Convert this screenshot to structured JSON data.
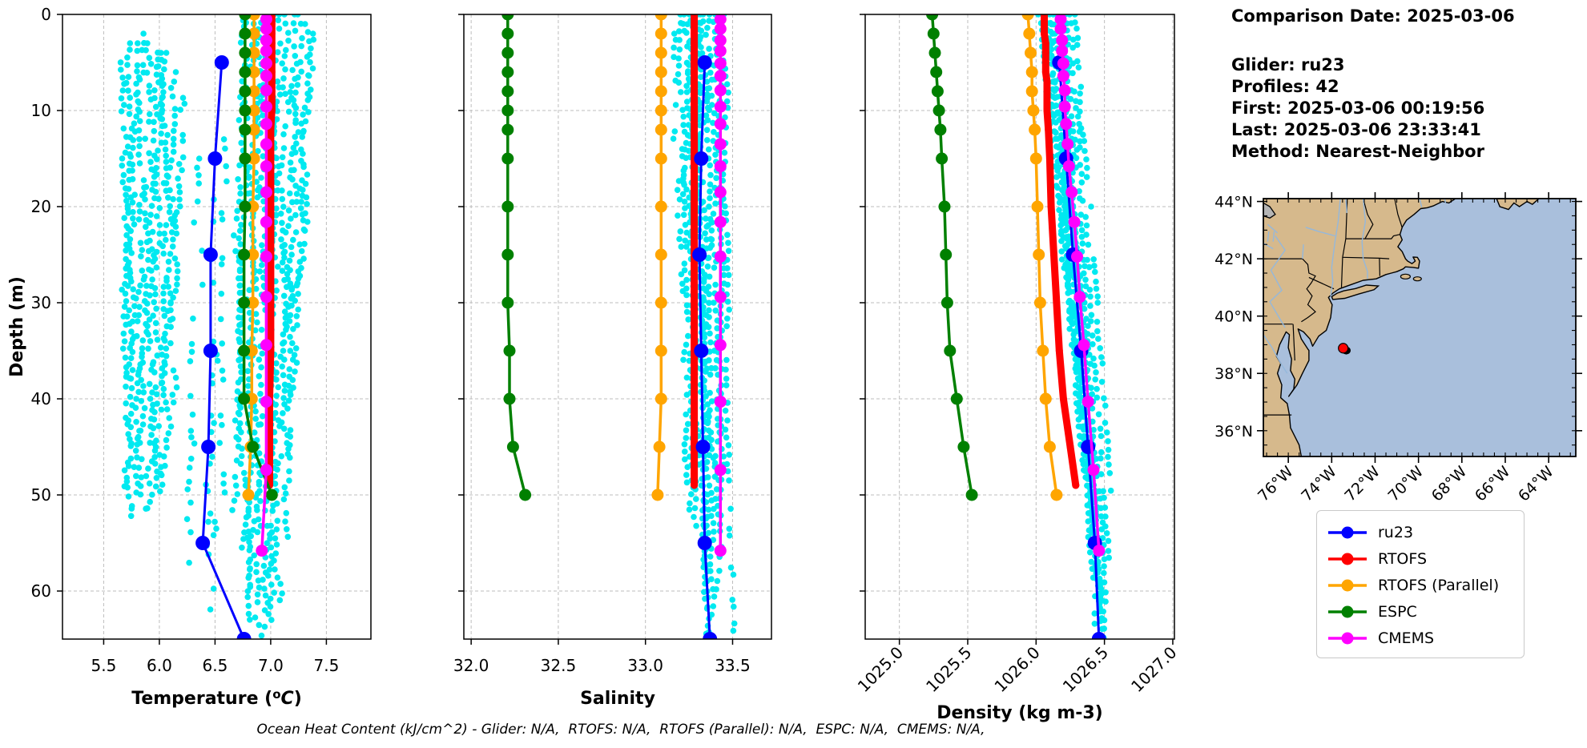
{
  "info": {
    "title": "Comparison Date: 2025-03-06",
    "lines": [
      "Glider: ru23",
      "Profiles: 42",
      "First: 2025-03-06 00:19:56",
      "Last: 2025-03-06 23:33:41",
      "Method: Nearest-Neighbor"
    ]
  },
  "footnote": {
    "text": "Ocean Heat Content (kJ/cm^2) - Glider: N/A,  RTOFS: N/A,  RTOFS (Parallel): N/A,  ESPC: N/A,  CMEMS: N/A,"
  },
  "legend": {
    "items": [
      {
        "label": "ru23",
        "color": "#0000ff"
      },
      {
        "label": "RTOFS",
        "color": "#ff0000"
      },
      {
        "label": "RTOFS (Parallel)",
        "color": "#ffa500"
      },
      {
        "label": "ESPC",
        "color": "#008000"
      },
      {
        "label": "CMEMS",
        "color": "#ff00ff"
      }
    ]
  },
  "colors": {
    "glider_scatter": "#00e9f0",
    "grid": "#bdbdbd",
    "spine": "#000000"
  },
  "chart_data": [
    {
      "type": "scatter",
      "id": "temperature",
      "xlabel": "Temperature (°C)",
      "ylabel": "Depth (m)",
      "xlim": [
        5.13,
        7.9
      ],
      "ylim": [
        0,
        65
      ],
      "xticks": [
        5.5,
        6.0,
        6.5,
        7.0,
        7.5
      ],
      "xtick_labels": [
        "5.5",
        "6.0",
        "6.5",
        "7.0",
        "7.5"
      ],
      "yticks": [
        0,
        10,
        20,
        30,
        40,
        50,
        60
      ],
      "ytick_labels": [
        "0",
        "10",
        "20",
        "30",
        "40",
        "50",
        "60"
      ],
      "rotate_xticks": false,
      "grid": true,
      "series": [
        {
          "name": "RTOFS",
          "color": "#ff0000",
          "lw": 9,
          "mr": 4.5,
          "depths": [
            0,
            1,
            2,
            3,
            4,
            5,
            6,
            7,
            8,
            9,
            10,
            12,
            15,
            20,
            25,
            30,
            35,
            40,
            45,
            49
          ],
          "values": [
            7.01,
            7.01,
            7.01,
            7.01,
            7.01,
            7.01,
            7.01,
            7.01,
            7.01,
            7.01,
            7.01,
            7.0,
            7.0,
            7.0,
            7.0,
            7.0,
            7.0,
            6.99,
            6.99,
            6.99
          ]
        },
        {
          "name": "RTOFS (Parallel)",
          "color": "#ffa500",
          "lw": 3.5,
          "mr": 7.5,
          "depths": [
            0,
            2,
            4,
            6,
            8,
            10,
            12,
            15,
            20,
            25,
            30,
            35,
            40,
            45,
            50
          ],
          "values": [
            6.85,
            6.85,
            6.85,
            6.85,
            6.85,
            6.85,
            6.85,
            6.85,
            6.84,
            6.84,
            6.84,
            6.83,
            6.83,
            6.82,
            6.8
          ]
        },
        {
          "name": "ESPC",
          "color": "#008000",
          "lw": 3.5,
          "mr": 7.5,
          "depths": [
            0,
            2,
            4,
            6,
            8,
            10,
            12,
            15,
            20,
            25,
            30,
            35,
            40,
            45,
            50
          ],
          "values": [
            6.77,
            6.77,
            6.77,
            6.77,
            6.77,
            6.77,
            6.77,
            6.77,
            6.77,
            6.76,
            6.76,
            6.76,
            6.76,
            6.84,
            7.01
          ]
        },
        {
          "name": "ru23",
          "color": "#0000ff",
          "lw": 3,
          "mr": 9,
          "depths": [
            5,
            15,
            25,
            35,
            45,
            55,
            65
          ],
          "values": [
            6.56,
            6.5,
            6.46,
            6.46,
            6.44,
            6.39,
            6.76
          ]
        },
        {
          "name": "CMEMS",
          "color": "#ff00ff",
          "lw": 3.5,
          "mr": 7.5,
          "depths": [
            0.5,
            1.5,
            2.7,
            3.8,
            5.1,
            6.4,
            7.9,
            9.6,
            11.4,
            13.5,
            15.8,
            18.5,
            21.6,
            25.2,
            29.4,
            34.4,
            40.3,
            47.4,
            55.8
          ],
          "values": [
            6.96,
            6.96,
            6.96,
            6.96,
            6.96,
            6.96,
            6.96,
            6.96,
            6.96,
            6.96,
            6.96,
            6.96,
            6.96,
            6.96,
            6.96,
            6.96,
            6.96,
            6.96,
            6.92
          ]
        }
      ],
      "glider_scatter": {
        "seed": 7,
        "step": 0.8,
        "jitter": 0.035,
        "strands": [
          [
            5.66,
            5.7,
            4,
            38
          ],
          [
            5.72,
            5.7,
            3,
            50
          ],
          [
            5.78,
            5.74,
            3,
            52
          ],
          [
            5.84,
            5.79,
            2,
            53
          ],
          [
            5.9,
            5.84,
            3,
            50
          ],
          [
            5.96,
            5.89,
            3,
            53
          ],
          [
            6.02,
            5.93,
            4,
            52
          ],
          [
            6.08,
            5.99,
            4,
            48
          ],
          [
            6.14,
            6.04,
            6,
            50
          ],
          [
            6.2,
            6.1,
            8,
            42
          ],
          [
            6.36,
            6.3,
            15,
            58,
            0.55
          ],
          [
            6.5,
            6.44,
            18,
            62,
            0.6
          ],
          [
            6.6,
            6.52,
            12,
            55,
            0.6
          ],
          [
            6.72,
            6.7,
            0,
            52
          ],
          [
            6.78,
            6.74,
            0,
            56
          ],
          [
            6.84,
            6.79,
            0,
            60
          ],
          [
            6.9,
            6.84,
            0,
            63
          ],
          [
            6.96,
            6.89,
            0,
            65
          ],
          [
            7.02,
            6.94,
            0,
            65
          ],
          [
            7.08,
            7.0,
            0,
            64
          ],
          [
            7.14,
            7.06,
            0,
            61
          ],
          [
            7.2,
            7.11,
            0,
            55
          ],
          [
            7.26,
            7.16,
            0,
            47
          ],
          [
            7.32,
            7.22,
            1,
            40
          ],
          [
            7.38,
            7.28,
            2,
            28
          ]
        ]
      }
    },
    {
      "type": "scatter",
      "id": "salinity",
      "xlabel": "Salinity",
      "ylabel": "Depth (m)",
      "xlim": [
        31.958,
        33.723
      ],
      "ylim": [
        0,
        65
      ],
      "xticks": [
        32.0,
        32.5,
        33.0,
        33.5
      ],
      "xtick_labels": [
        "32.0",
        "32.5",
        "33.0",
        "33.5"
      ],
      "yticks": [
        0,
        10,
        20,
        30,
        40,
        50,
        60
      ],
      "ytick_labels": [],
      "rotate_xticks": false,
      "grid": true,
      "series": [
        {
          "name": "RTOFS",
          "color": "#ff0000",
          "lw": 9,
          "mr": 4.5,
          "depths": [
            0,
            1,
            2,
            3,
            4,
            5,
            6,
            7,
            8,
            9,
            10,
            12,
            15,
            20,
            25,
            30,
            35,
            40,
            45,
            49
          ],
          "values": [
            33.28,
            33.28,
            33.28,
            33.28,
            33.28,
            33.28,
            33.28,
            33.28,
            33.28,
            33.28,
            33.28,
            33.28,
            33.28,
            33.28,
            33.28,
            33.28,
            33.28,
            33.28,
            33.28,
            33.28
          ]
        },
        {
          "name": "RTOFS (Parallel)",
          "color": "#ffa500",
          "lw": 3.5,
          "mr": 7.5,
          "depths": [
            0,
            2,
            4,
            6,
            8,
            10,
            12,
            15,
            20,
            25,
            30,
            35,
            40,
            45,
            50
          ],
          "values": [
            33.09,
            33.09,
            33.09,
            33.09,
            33.09,
            33.09,
            33.09,
            33.09,
            33.09,
            33.09,
            33.09,
            33.09,
            33.09,
            33.08,
            33.07
          ]
        },
        {
          "name": "ESPC",
          "color": "#008000",
          "lw": 3.5,
          "mr": 7.5,
          "depths": [
            0,
            2,
            4,
            6,
            8,
            10,
            12,
            15,
            20,
            25,
            30,
            35,
            40,
            45,
            50
          ],
          "values": [
            32.21,
            32.21,
            32.21,
            32.21,
            32.21,
            32.21,
            32.21,
            32.21,
            32.21,
            32.21,
            32.21,
            32.22,
            32.22,
            32.24,
            32.31
          ]
        },
        {
          "name": "ru23",
          "color": "#0000ff",
          "lw": 3,
          "mr": 9,
          "depths": [
            5,
            15,
            25,
            35,
            45,
            55,
            65
          ],
          "values": [
            33.34,
            33.32,
            33.31,
            33.32,
            33.33,
            33.34,
            33.37
          ]
        },
        {
          "name": "CMEMS",
          "color": "#ff00ff",
          "lw": 3.5,
          "mr": 7.5,
          "depths": [
            0.5,
            1.5,
            2.7,
            3.8,
            5.1,
            6.4,
            7.9,
            9.6,
            11.4,
            13.5,
            15.8,
            18.5,
            21.6,
            25.2,
            29.4,
            34.4,
            40.3,
            47.4,
            55.8
          ],
          "values": [
            33.43,
            33.43,
            33.43,
            33.43,
            33.43,
            33.43,
            33.43,
            33.43,
            33.43,
            33.43,
            33.43,
            33.43,
            33.43,
            33.43,
            33.43,
            33.43,
            33.43,
            33.43,
            33.43
          ]
        }
      ],
      "glider_scatter": {
        "seed": 11,
        "step": 0.85,
        "jitter": 0.015,
        "strands": [
          [
            33.2,
            33.24,
            0,
            49
          ],
          [
            33.23,
            33.27,
            0,
            52
          ],
          [
            33.27,
            33.3,
            0,
            54
          ],
          [
            33.3,
            33.33,
            0,
            58
          ],
          [
            33.33,
            33.36,
            0,
            65
          ],
          [
            33.36,
            33.39,
            0,
            64
          ],
          [
            33.39,
            33.42,
            0,
            60
          ],
          [
            33.42,
            33.44,
            0,
            53
          ],
          [
            33.45,
            33.47,
            0,
            50
          ],
          [
            33.25,
            33.29,
            0,
            47
          ],
          [
            33.31,
            33.35,
            0,
            65
          ],
          [
            33.47,
            33.52,
            48,
            65,
            0.4
          ],
          [
            33.17,
            33.2,
            2,
            30,
            0.5
          ]
        ]
      }
    },
    {
      "type": "scatter",
      "id": "density",
      "xlabel": "Density (kg m-3)",
      "ylabel": "Depth (m)",
      "xlim": [
        1024.75,
        1027.012
      ],
      "ylim": [
        0,
        65
      ],
      "xticks": [
        1025.0,
        1025.5,
        1026.0,
        1026.5,
        1027.0
      ],
      "xtick_labels": [
        "1025.0",
        "1025.5",
        "1026.0",
        "1026.5",
        "1027.0"
      ],
      "yticks": [
        0,
        10,
        20,
        30,
        40,
        50,
        60
      ],
      "ytick_labels": [],
      "rotate_xticks": true,
      "grid": true,
      "series": [
        {
          "name": "RTOFS",
          "color": "#ff0000",
          "lw": 9,
          "mr": 4.5,
          "depths": [
            0,
            1,
            2,
            3,
            4,
            5,
            6,
            7,
            8,
            9,
            10,
            12,
            15,
            20,
            25,
            30,
            35,
            40,
            45,
            49
          ],
          "values": [
            1026.06,
            1026.06,
            1026.06,
            1026.07,
            1026.07,
            1026.07,
            1026.07,
            1026.08,
            1026.08,
            1026.08,
            1026.08,
            1026.09,
            1026.1,
            1026.11,
            1026.13,
            1026.15,
            1026.17,
            1026.2,
            1026.25,
            1026.29
          ]
        },
        {
          "name": "RTOFS (Parallel)",
          "color": "#ffa500",
          "lw": 3.5,
          "mr": 7.5,
          "depths": [
            0,
            2,
            4,
            6,
            8,
            10,
            12,
            15,
            20,
            25,
            30,
            35,
            40,
            45,
            50
          ],
          "values": [
            1025.94,
            1025.95,
            1025.96,
            1025.97,
            1025.97,
            1025.98,
            1025.99,
            1026.0,
            1026.01,
            1026.02,
            1026.03,
            1026.05,
            1026.07,
            1026.1,
            1026.15
          ]
        },
        {
          "name": "ESPC",
          "color": "#008000",
          "lw": 3.5,
          "mr": 7.5,
          "depths": [
            0,
            2,
            4,
            6,
            8,
            10,
            12,
            15,
            20,
            25,
            30,
            35,
            40,
            45,
            50
          ],
          "values": [
            1025.24,
            1025.25,
            1025.26,
            1025.27,
            1025.28,
            1025.29,
            1025.3,
            1025.31,
            1025.33,
            1025.34,
            1025.35,
            1025.37,
            1025.42,
            1025.47,
            1025.53
          ]
        },
        {
          "name": "ru23",
          "color": "#0000ff",
          "lw": 3,
          "mr": 9,
          "depths": [
            5,
            15,
            25,
            35,
            45,
            55,
            65
          ],
          "values": [
            1026.17,
            1026.22,
            1026.27,
            1026.33,
            1026.38,
            1026.43,
            1026.46
          ]
        },
        {
          "name": "CMEMS",
          "color": "#ff00ff",
          "lw": 3.5,
          "mr": 7.5,
          "depths": [
            0.5,
            1.5,
            2.7,
            3.8,
            5.1,
            6.4,
            7.9,
            9.6,
            11.4,
            13.5,
            15.8,
            18.5,
            21.6,
            25.2,
            29.4,
            34.4,
            40.3,
            47.4,
            55.8
          ],
          "values": [
            1026.18,
            1026.18,
            1026.19,
            1026.19,
            1026.2,
            1026.2,
            1026.21,
            1026.21,
            1026.22,
            1026.23,
            1026.24,
            1026.26,
            1026.28,
            1026.3,
            1026.32,
            1026.35,
            1026.38,
            1026.42,
            1026.46
          ]
        }
      ],
      "glider_scatter": {
        "seed": 23,
        "step": 0.85,
        "jitter": 0.012,
        "strands": [
          [
            1026.04,
            1026.36,
            0,
            48
          ],
          [
            1026.07,
            1026.4,
            0,
            52
          ],
          [
            1026.1,
            1026.43,
            0,
            56
          ],
          [
            1026.13,
            1026.46,
            0,
            62
          ],
          [
            1026.16,
            1026.48,
            0,
            65
          ],
          [
            1026.19,
            1026.5,
            0,
            65
          ],
          [
            1026.22,
            1026.52,
            0,
            62
          ],
          [
            1026.25,
            1026.54,
            0,
            57
          ],
          [
            1026.28,
            1026.56,
            0,
            50,
            0.35
          ],
          [
            1026.11,
            1026.44,
            0,
            65
          ],
          [
            1026.17,
            1026.49,
            0,
            63
          ],
          [
            1026.02,
            1026.33,
            0,
            40,
            0.45
          ]
        ]
      }
    }
  ],
  "map": {
    "extent": {
      "lon": [
        -77.15,
        -62.75
      ],
      "lat": [
        35.1,
        44.1
      ]
    },
    "lon_ticks": [
      -76,
      -74,
      -72,
      -70,
      -68,
      -66,
      -64
    ],
    "lon_labels": [
      "76°W",
      "74°W",
      "72°W",
      "70°W",
      "68°W",
      "66°W",
      "64°W"
    ],
    "lat_ticks": [
      44,
      42,
      40,
      38,
      36
    ],
    "lat_labels": [
      "44°N",
      "42°N",
      "40°N",
      "38°N",
      "36°N"
    ],
    "glider_marker": {
      "lon": -73.47,
      "lat": 38.88,
      "color": "#ff0000"
    },
    "track_marker": {
      "lon": -73.33,
      "lat": 38.8,
      "color": "#000000"
    },
    "colors": {
      "land": "#d6b98c",
      "ocean": "#a9bfdc",
      "lake": "#b5b5b5",
      "river": "#94b8dc",
      "coast": "#000000",
      "border": "#000000"
    }
  }
}
